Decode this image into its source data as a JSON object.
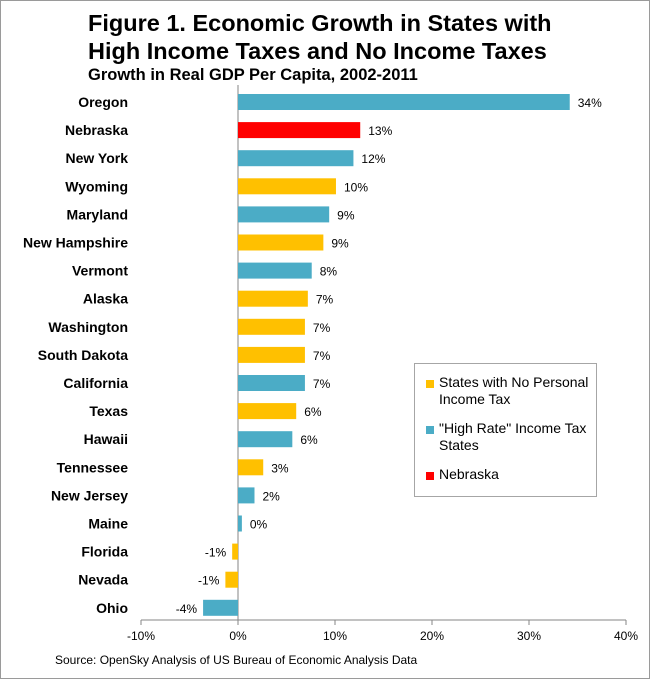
{
  "chart_data": {
    "type": "bar",
    "orientation": "horizontal",
    "title": "Figure 1. Economic Growth in States with High Income Taxes and No Income Taxes",
    "subtitle": "Growth in Real GDP Per Capita, 2002-2011",
    "source": "Source: OpenSky Analysis of US Bureau of Economic Analysis Data",
    "xlim": [
      -10,
      40
    ],
    "x_ticks": [
      -10,
      0,
      10,
      20,
      30,
      40
    ],
    "x_tick_labels": [
      "-10%",
      "0%",
      "10%",
      "20%",
      "30%",
      "40%"
    ],
    "grid": false,
    "legend_position": "right",
    "colors": {
      "no_tax": "#FFC000",
      "high_rate": "#4BACC6",
      "nebraska": "#FF0000"
    },
    "legend": [
      {
        "group": "no_tax",
        "label": "States with No Personal Income Tax"
      },
      {
        "group": "high_rate",
        "label": "\"High Rate\" Income Tax States"
      },
      {
        "group": "nebraska",
        "label": "Nebraska"
      }
    ],
    "bars": [
      {
        "category": "Oregon",
        "value": 34.2,
        "label": "34%",
        "group": "high_rate"
      },
      {
        "category": "Nebraska",
        "value": 12.6,
        "label": "13%",
        "group": "nebraska"
      },
      {
        "category": "New York",
        "value": 11.9,
        "label": "12%",
        "group": "high_rate"
      },
      {
        "category": "Wyoming",
        "value": 10.1,
        "label": "10%",
        "group": "no_tax"
      },
      {
        "category": "Maryland",
        "value": 9.4,
        "label": "9%",
        "group": "high_rate"
      },
      {
        "category": "New Hampshire",
        "value": 8.8,
        "label": "9%",
        "group": "no_tax"
      },
      {
        "category": "Vermont",
        "value": 7.6,
        "label": "8%",
        "group": "high_rate"
      },
      {
        "category": "Alaska",
        "value": 7.2,
        "label": "7%",
        "group": "no_tax"
      },
      {
        "category": "Washington",
        "value": 6.9,
        "label": "7%",
        "group": "no_tax"
      },
      {
        "category": "South Dakota",
        "value": 6.9,
        "label": "7%",
        "group": "no_tax"
      },
      {
        "category": "California",
        "value": 6.9,
        "label": "7%",
        "group": "high_rate"
      },
      {
        "category": "Texas",
        "value": 6.0,
        "label": "6%",
        "group": "no_tax"
      },
      {
        "category": "Hawaii",
        "value": 5.6,
        "label": "6%",
        "group": "high_rate"
      },
      {
        "category": "Tennessee",
        "value": 2.6,
        "label": "3%",
        "group": "no_tax"
      },
      {
        "category": "New Jersey",
        "value": 1.7,
        "label": "2%",
        "group": "high_rate"
      },
      {
        "category": "Maine",
        "value": 0.4,
        "label": "0%",
        "group": "high_rate"
      },
      {
        "category": "Florida",
        "value": -0.6,
        "label": "-1%",
        "group": "no_tax"
      },
      {
        "category": "Nevada",
        "value": -1.3,
        "label": "-1%",
        "group": "no_tax"
      },
      {
        "category": "Ohio",
        "value": -3.6,
        "label": "-4%",
        "group": "high_rate"
      }
    ]
  }
}
